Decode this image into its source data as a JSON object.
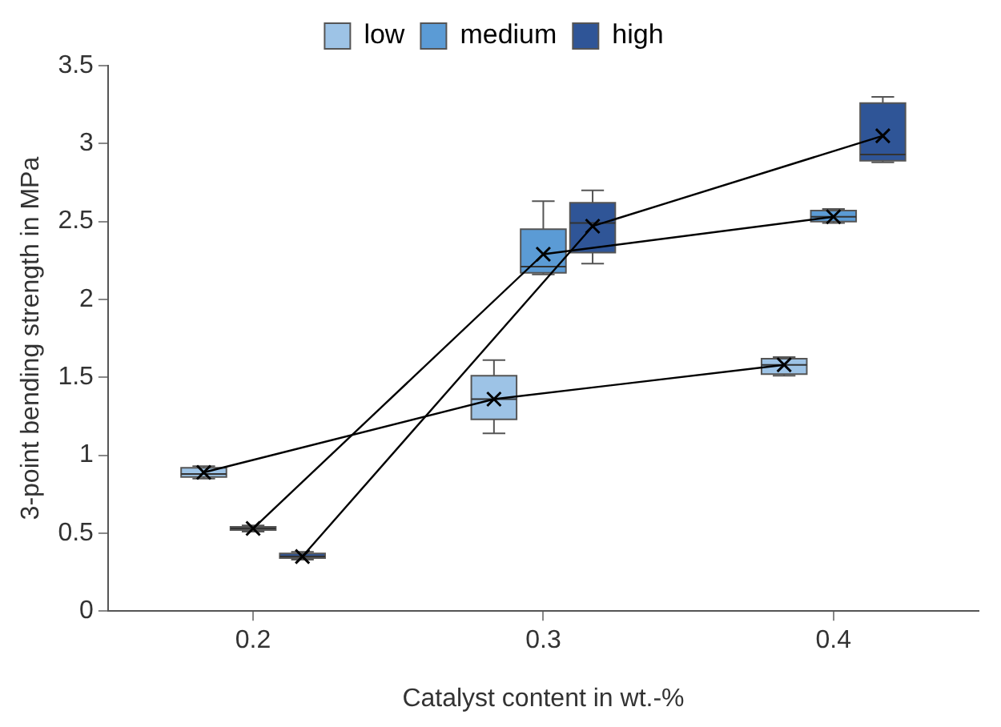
{
  "chart_data": {
    "type": "box",
    "xlabel": "Catalyst content in wt.-%",
    "ylabel": "3-point bending strength in MPa",
    "xlim": [
      0.15,
      0.45
    ],
    "xticks": [
      0.2,
      0.3,
      0.4
    ],
    "ylim": [
      0,
      3.5
    ],
    "yticks": [
      0,
      0.5,
      1,
      1.5,
      2,
      2.5,
      3,
      3.5
    ],
    "grid": false,
    "legend": "top",
    "series": [
      {
        "name": "low",
        "color": "#9dc3e6",
        "x": [
          0.183,
          0.283,
          0.383
        ],
        "boxes": [
          {
            "low": 0.85,
            "q1": 0.86,
            "median": 0.88,
            "q3": 0.92,
            "high": 0.93
          },
          {
            "low": 1.14,
            "q1": 1.23,
            "median": 1.36,
            "q3": 1.51,
            "high": 1.61
          },
          {
            "low": 1.51,
            "q1": 1.52,
            "median": 1.58,
            "q3": 1.62,
            "high": 1.63
          }
        ]
      },
      {
        "name": "medium",
        "color": "#5b9bd5",
        "x": [
          0.2,
          0.3,
          0.4
        ],
        "boxes": [
          {
            "low": 0.51,
            "q1": 0.52,
            "median": 0.53,
            "q3": 0.54,
            "high": 0.55
          },
          {
            "low": 2.16,
            "q1": 2.17,
            "median": 2.21,
            "q3": 2.45,
            "high": 2.63
          },
          {
            "low": 2.49,
            "q1": 2.5,
            "median": 2.53,
            "q3": 2.57,
            "high": 2.58
          }
        ]
      },
      {
        "name": "high",
        "color": "#2f5597",
        "x": [
          0.217,
          0.317,
          0.417
        ],
        "boxes": [
          {
            "low": 0.33,
            "q1": 0.34,
            "median": 0.35,
            "q3": 0.37,
            "high": 0.38
          },
          {
            "low": 2.23,
            "q1": 2.3,
            "median": 2.49,
            "q3": 2.62,
            "high": 2.7
          },
          {
            "low": 2.88,
            "q1": 2.89,
            "median": 2.93,
            "q3": 3.26,
            "high": 3.3
          }
        ]
      },
      {
        "type": "line",
        "color": "#000000",
        "marker": "cross",
        "x": [
          0.183,
          0.283,
          0.383
        ],
        "values": [
          0.89,
          1.36,
          1.58
        ]
      },
      {
        "type": "line",
        "color": "#000000",
        "marker": "cross",
        "x": [
          0.2,
          0.3,
          0.4
        ],
        "values": [
          0.53,
          2.29,
          2.53
        ]
      },
      {
        "type": "line",
        "color": "#000000",
        "marker": "cross",
        "x": [
          0.217,
          0.317,
          0.417
        ],
        "values": [
          0.35,
          2.47,
          3.05
        ]
      }
    ]
  }
}
